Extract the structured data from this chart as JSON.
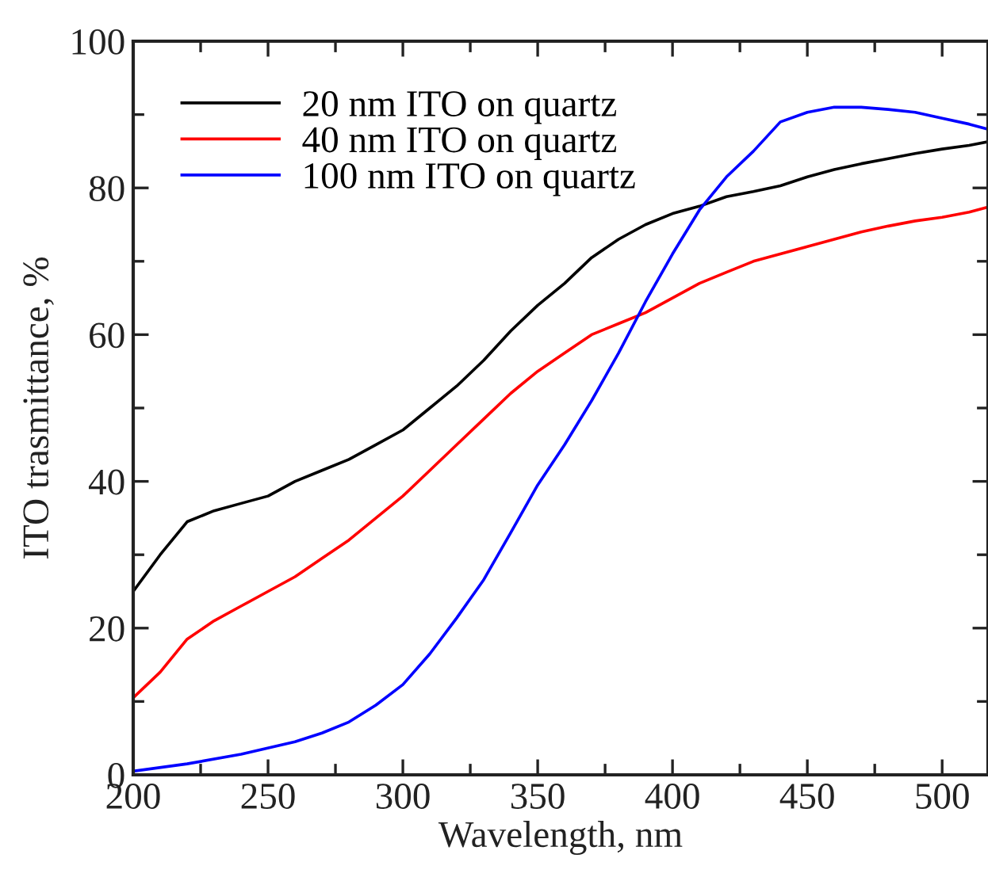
{
  "chart_data": {
    "type": "line",
    "xlabel": "Wavelength, nm",
    "ylabel": "ITO trasmittance, %",
    "xlim": [
      200,
      517
    ],
    "xticks": [
      200,
      250,
      300,
      350,
      400,
      450,
      500
    ],
    "ylim": [
      0,
      100
    ],
    "yticks": [
      0,
      20,
      40,
      60,
      80,
      100
    ],
    "legend": "top left",
    "grid": false,
    "marker": "none",
    "line_style": "solid",
    "series": [
      {
        "name": "20 nm ITO on quartz",
        "color": "#000000",
        "x": [
          200,
          210,
          220,
          230,
          240,
          250,
          260,
          270,
          280,
          290,
          300,
          310,
          320,
          330,
          340,
          350,
          360,
          370,
          380,
          390,
          400,
          410,
          420,
          430,
          440,
          450,
          460,
          470,
          480,
          490,
          500,
          510,
          517
        ],
        "values": [
          25,
          30,
          34.5,
          36,
          37,
          38,
          40,
          41.5,
          43,
          45,
          47,
          50,
          53,
          56.5,
          60.5,
          64,
          67,
          70.5,
          73,
          75,
          76.5,
          77.5,
          78.8,
          79.5,
          80.3,
          81.5,
          82.5,
          83.3,
          84,
          84.7,
          85.3,
          85.8,
          86.3
        ]
      },
      {
        "name": "40 nm ITO on quartz",
        "color": "#ff0000",
        "x": [
          200,
          210,
          220,
          230,
          240,
          250,
          260,
          270,
          280,
          290,
          300,
          310,
          320,
          330,
          340,
          350,
          360,
          370,
          380,
          390,
          400,
          410,
          420,
          430,
          440,
          450,
          460,
          470,
          480,
          490,
          500,
          510,
          517
        ],
        "values": [
          10.5,
          14,
          18.5,
          21,
          23,
          25,
          27,
          29.5,
          32,
          35,
          38,
          41.5,
          45,
          48.5,
          52,
          55,
          57.5,
          60,
          61.5,
          63,
          65,
          67,
          68.5,
          70,
          71,
          72,
          73,
          74,
          74.8,
          75.5,
          76,
          76.7,
          77.4
        ]
      },
      {
        "name": "100 nm ITO on quartz",
        "color": "#0000ff",
        "x": [
          200,
          220,
          240,
          260,
          270,
          280,
          290,
          300,
          310,
          320,
          330,
          340,
          350,
          360,
          370,
          380,
          390,
          400,
          410,
          420,
          430,
          440,
          450,
          460,
          470,
          480,
          490,
          500,
          510,
          517
        ],
        "values": [
          0.5,
          1.5,
          2.8,
          4.5,
          5.7,
          7.2,
          9.5,
          12.3,
          16.5,
          21.4,
          26.6,
          33,
          39.5,
          45,
          51,
          57.5,
          64.5,
          71,
          77,
          81.5,
          85,
          89,
          90.3,
          91,
          91,
          90.7,
          90.3,
          89.5,
          88.7,
          88
        ]
      }
    ]
  }
}
